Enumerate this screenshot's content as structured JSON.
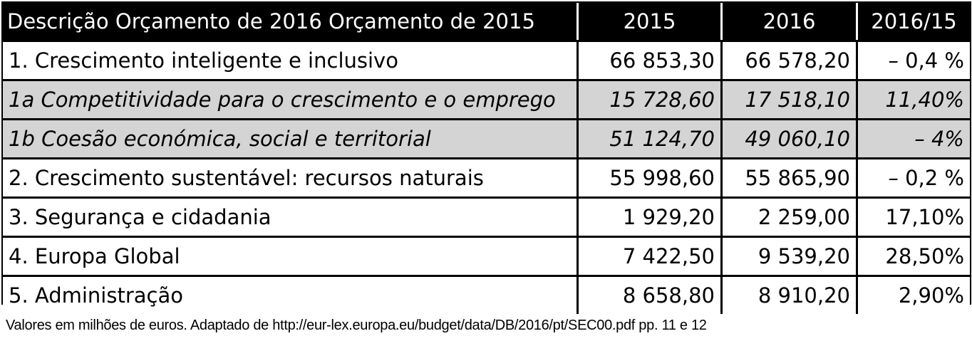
{
  "table": {
    "headers": {
      "description": "Descrição Orçamento de 2016 Orçamento de 2015",
      "col_2015": "2015",
      "col_2016": "2016",
      "col_change": "2016/15"
    },
    "rows": [
      {
        "label": "1. Crescimento inteligente e inclusivo",
        "v2015": "66 853,30",
        "v2016": "66 578,20",
        "change": "– 0,4 %",
        "subcategory": false
      },
      {
        "label": "1a Competitividade para o crescimento e o emprego",
        "v2015": "15 728,60",
        "v2016": "17 518,10",
        "change": "11,40%",
        "subcategory": true
      },
      {
        "label": "1b Coesão económica, social e territorial",
        "v2015": "51 124,70",
        "v2016": "49 060,10",
        "change": "– 4%",
        "subcategory": true
      },
      {
        "label": "2. Crescimento sustentável: recursos naturais",
        "v2015": "55 998,60",
        "v2016": "55 865,90",
        "change": "– 0,2 %",
        "subcategory": false
      },
      {
        "label": "3. Segurança e cidadania",
        "v2015": "1 929,20",
        "v2016": "2 259,00",
        "change": "17,10%",
        "subcategory": false
      },
      {
        "label": "4. Europa Global",
        "v2015": "7 422,50",
        "v2016": "9 539,20",
        "change": "28,50%",
        "subcategory": false
      },
      {
        "label": "5. Administração",
        "v2015": "8 658,80",
        "v2016": "8 910,20",
        "change": "2,90%",
        "subcategory": false
      }
    ]
  },
  "footnote": "Valores em milhões de euros. Adaptado de http://eur-lex.europa.eu/budget/data/DB/2016/pt/SEC00.pdf pp. 11 e 12",
  "colors": {
    "header_background": "#000000",
    "header_text": "#ffffff",
    "subcategory_background": "#d4d4d4"
  }
}
